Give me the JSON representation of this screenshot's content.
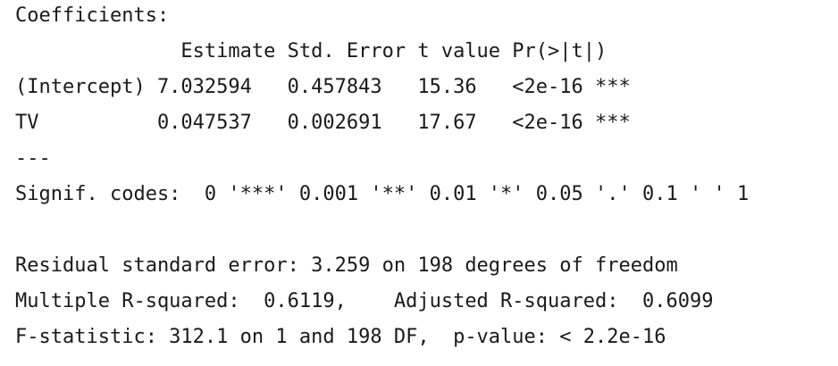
{
  "header": "Coefficients:",
  "table": {
    "columns": [
      "Estimate",
      "Std. Error",
      "t value",
      "Pr(>|t|)"
    ],
    "header_line": "              Estimate Std. Error t value Pr(>|t|)    ",
    "rows": [
      {
        "name": "(Intercept)",
        "estimate": "7.032594",
        "std_error": "0.457843",
        "t_value": "15.36",
        "p_value": "<2e-16",
        "signif": "***",
        "line": "(Intercept) 7.032594   0.457843   15.36   <2e-16 ***"
      },
      {
        "name": "TV",
        "estimate": "0.047537",
        "std_error": "0.002691",
        "t_value": "17.67",
        "p_value": "<2e-16",
        "signif": "***",
        "line": "TV          0.047537   0.002691   17.67   <2e-16 ***"
      }
    ]
  },
  "separator": "---",
  "signif_codes": "Signif. codes:  0 '***' 0.001 '**' 0.01 '*' 0.05 '.' 0.1 ' ' 1",
  "residual_se": "Residual standard error: 3.259 on 198 degrees of freedom",
  "r_squared": "Multiple R-squared:  0.6119,    Adjusted R-squared:  0.6099",
  "f_statistic": "F-statistic: 312.1 on 1 and 198 DF,  p-value: < 2.2e-16"
}
